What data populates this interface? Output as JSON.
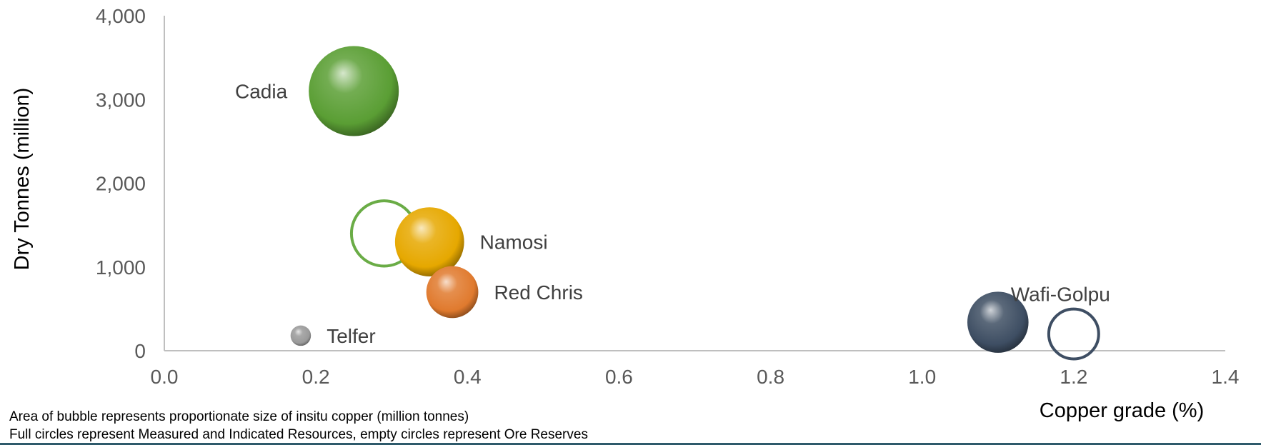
{
  "chart_data": {
    "type": "bubble",
    "xlabel": "Copper grade (%)",
    "ylabel": "Dry Tonnes (million)",
    "xlim": [
      0,
      1.4
    ],
    "ylim": [
      0,
      4000
    ],
    "x_ticks": [
      "0.0",
      "0.2",
      "0.4",
      "0.6",
      "0.8",
      "1.0",
      "1.2",
      "1.4"
    ],
    "y_ticks": [
      "0",
      "1,000",
      "2,000",
      "3,000",
      "4,000"
    ],
    "grid": false,
    "size_encoding": "area",
    "points": [
      {
        "label": "Cadia",
        "x": 0.25,
        "y": 3100,
        "insitu_copper_mt": 7.8,
        "filled": true,
        "color": "#5a9e34",
        "label_side": "left"
      },
      {
        "label": "",
        "x": 0.29,
        "y": 1400,
        "insitu_copper_mt": 4.1,
        "filled": false,
        "color": "#6aac46"
      },
      {
        "label": "Namosi",
        "x": 0.35,
        "y": 1300,
        "insitu_copper_mt": 4.6,
        "filled": true,
        "color": "#e6a800",
        "label_side": "right"
      },
      {
        "label": "Red Chris",
        "x": 0.38,
        "y": 700,
        "insitu_copper_mt": 2.6,
        "filled": true,
        "color": "#e07a2e",
        "label_side": "right"
      },
      {
        "label": "Telfer",
        "x": 0.18,
        "y": 180,
        "insitu_copper_mt": 0.4,
        "filled": true,
        "color": "#9a9a9a",
        "label_side": "right"
      },
      {
        "label": "Wafi-Golpu",
        "x": 1.1,
        "y": 340,
        "insitu_copper_mt": 3.6,
        "filled": true,
        "color": "#3e4e63",
        "label_side": "above-right"
      },
      {
        "label": "",
        "x": 1.2,
        "y": 200,
        "insitu_copper_mt": 2.4,
        "filled": false,
        "color": "#3e4e63"
      }
    ]
  },
  "footnotes": {
    "line1": "Area of bubble represents proportionate size of insitu copper (million tonnes)",
    "line2": "Full circles represent Measured and Indicated Resources, empty circles represent Ore Reserves"
  }
}
